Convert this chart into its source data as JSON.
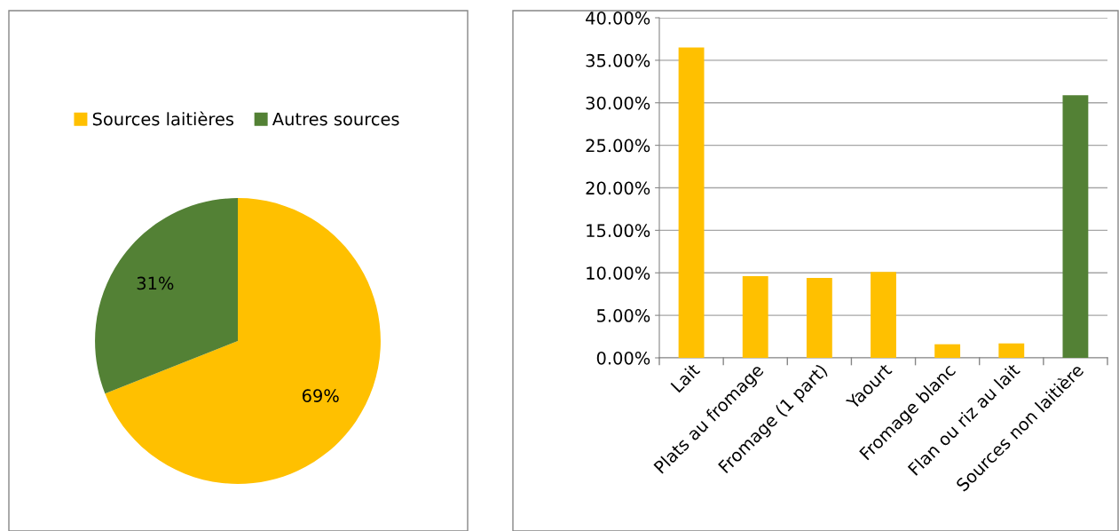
{
  "chart_data": [
    {
      "type": "pie",
      "categories": [
        "Sources laitières",
        "Autres sources"
      ],
      "values": [
        69,
        31
      ],
      "colors": [
        "#ffc000",
        "#538135"
      ],
      "value_labels": [
        "69%",
        "31%"
      ],
      "legend": "top"
    },
    {
      "type": "bar",
      "categories": [
        "Lait",
        "Plats au fromage",
        "Fromage (1 part)",
        "Yaourt",
        "Fromage blanc",
        "Flan ou riz au lait",
        "Sources non laitière"
      ],
      "values": [
        36.5,
        9.6,
        9.4,
        10.1,
        1.6,
        1.7,
        30.9
      ],
      "colors": [
        "#ffc000",
        "#ffc000",
        "#ffc000",
        "#ffc000",
        "#ffc000",
        "#ffc000",
        "#538135"
      ],
      "ylim": [
        0,
        40
      ],
      "yticks": [
        {
          "value": 0,
          "label": "0.00%"
        },
        {
          "value": 5,
          "label": "5.00%"
        },
        {
          "value": 10,
          "label": "10.00%"
        },
        {
          "value": 15,
          "label": "15.00%"
        },
        {
          "value": 20,
          "label": "20.00%"
        },
        {
          "value": 25,
          "label": "25.00%"
        },
        {
          "value": 30,
          "label": "30.00%"
        },
        {
          "value": 35,
          "label": "35.00%"
        },
        {
          "value": 40,
          "label": "40.00%"
        }
      ],
      "grid": "y"
    }
  ]
}
